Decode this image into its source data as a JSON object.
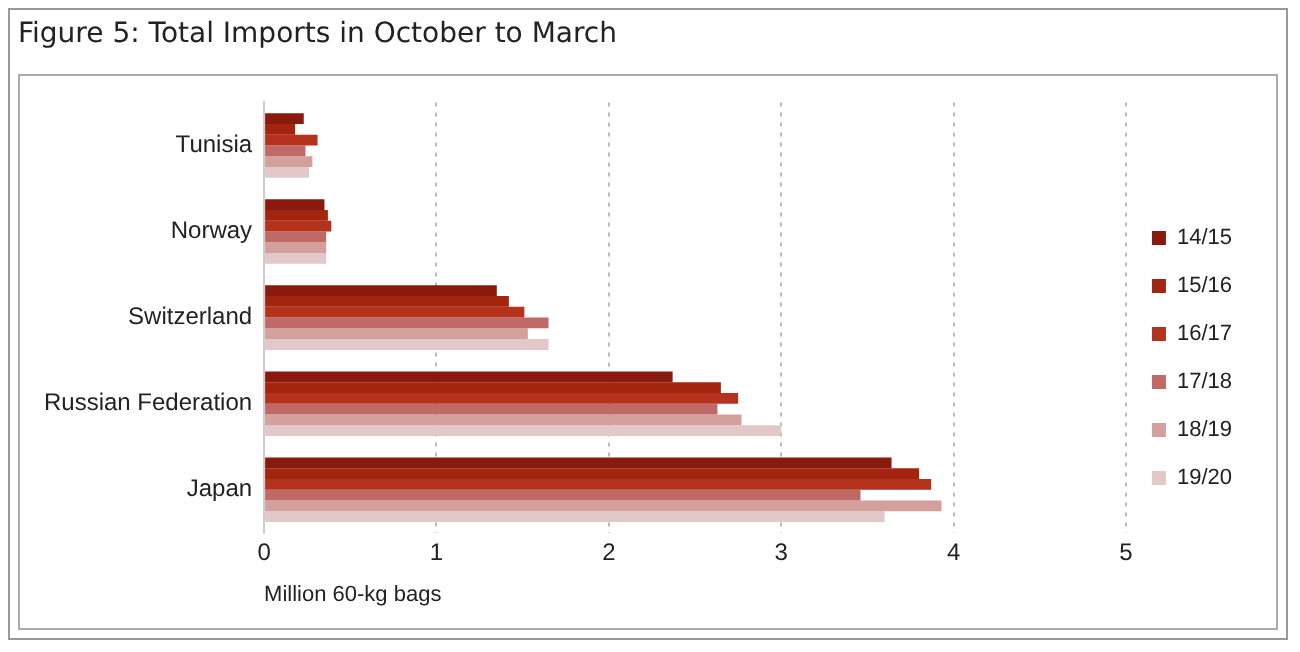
{
  "chart_data": {
    "type": "bar",
    "orientation": "horizontal",
    "title": "Figure  5: Total Imports in October to March",
    "xlabel": "Million 60-kg bags",
    "categories": [
      "Tunisia",
      "Norway",
      "Switzerland",
      "Russian Federation",
      "Japan"
    ],
    "series": [
      {
        "name": "14/15",
        "color": "#8b1a0e",
        "values": [
          0.23,
          0.35,
          1.35,
          2.37,
          3.64
        ]
      },
      {
        "name": "15/16",
        "color": "#a3240f",
        "values": [
          0.18,
          0.37,
          1.42,
          2.65,
          3.8
        ]
      },
      {
        "name": "16/17",
        "color": "#b5321c",
        "values": [
          0.31,
          0.39,
          1.51,
          2.75,
          3.87
        ]
      },
      {
        "name": "17/18",
        "color": "#c06a68",
        "values": [
          0.24,
          0.36,
          1.65,
          2.63,
          3.46
        ]
      },
      {
        "name": "18/19",
        "color": "#d4a09c",
        "values": [
          0.28,
          0.36,
          1.53,
          2.77,
          3.93
        ]
      },
      {
        "name": "19/20",
        "color": "#e2c8c8",
        "values": [
          0.26,
          0.36,
          1.65,
          3.0,
          3.6
        ]
      }
    ],
    "xlim": [
      0,
      5
    ],
    "xticks": [
      0,
      1,
      2,
      3,
      4,
      5
    ],
    "grid": "x",
    "legend": "right"
  }
}
